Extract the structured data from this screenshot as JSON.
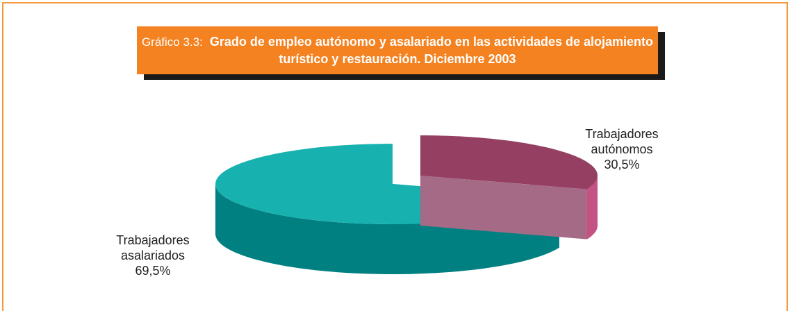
{
  "chart_data": {
    "type": "pie",
    "title_prefix": "Gráfico 3.3:",
    "title": "Grado de empleo autónomo y asalariado en las actividades de alojamiento turístico y restauración. Diciembre 2003",
    "categories": [
      "Trabajadores autónomos",
      "Trabajadores asalariados"
    ],
    "values": [
      30.5,
      69.5
    ],
    "value_labels": [
      "30,5%",
      "69,5%"
    ],
    "colors": [
      "#953f62",
      "#17b2b0"
    ]
  }
}
